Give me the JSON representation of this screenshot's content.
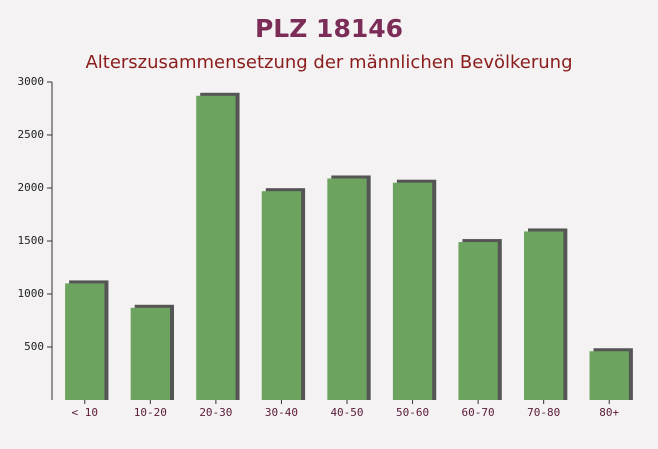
{
  "chart_data": {
    "type": "bar",
    "title": "PLZ 18146",
    "subtitle": "Alterszusammensetzung der männlichen Bevölkerung",
    "categories": [
      "< 10",
      "10-20",
      "20-30",
      "30-40",
      "40-50",
      "50-60",
      "60-70",
      "70-80",
      "80+"
    ],
    "values": [
      1100,
      870,
      2870,
      1970,
      2090,
      2050,
      1490,
      1590,
      460
    ],
    "color": "#6ba35f",
    "ylim": [
      0,
      3000
    ],
    "yticks": [
      500,
      1000,
      1500,
      2000,
      2500,
      3000
    ]
  }
}
